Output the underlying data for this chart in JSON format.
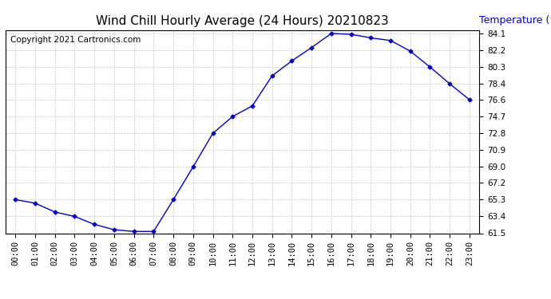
{
  "title": "Wind Chill Hourly Average (24 Hours) 20210823",
  "ylabel": "Temperature (°F)",
  "copyright_text": "Copyright 2021 Cartronics.com",
  "hours": [
    "00:00",
    "01:00",
    "02:00",
    "03:00",
    "04:00",
    "05:00",
    "06:00",
    "07:00",
    "08:00",
    "09:00",
    "10:00",
    "11:00",
    "12:00",
    "13:00",
    "14:00",
    "15:00",
    "16:00",
    "17:00",
    "18:00",
    "19:00",
    "20:00",
    "21:00",
    "22:00",
    "23:00"
  ],
  "values": [
    65.3,
    64.9,
    63.9,
    63.4,
    62.5,
    61.9,
    61.7,
    61.7,
    65.3,
    69.0,
    72.8,
    74.7,
    75.9,
    79.3,
    81.0,
    82.5,
    84.1,
    84.0,
    83.6,
    83.3,
    82.1,
    80.3,
    78.4,
    76.6
  ],
  "line_color": "#0000cc",
  "marker": "D",
  "marker_size": 2.5,
  "ylim_min": 61.5,
  "ylim_max": 84.5,
  "yticks": [
    61.5,
    63.4,
    65.3,
    67.2,
    69.0,
    70.9,
    72.8,
    74.7,
    76.6,
    78.4,
    80.3,
    82.2,
    84.1
  ],
  "grid_color": "#c8c8c8",
  "background_color": "#ffffff",
  "title_fontsize": 11,
  "ylabel_color": "#0000cc",
  "ylabel_fontsize": 9,
  "copyright_fontsize": 7.5,
  "tick_fontsize": 7.5
}
